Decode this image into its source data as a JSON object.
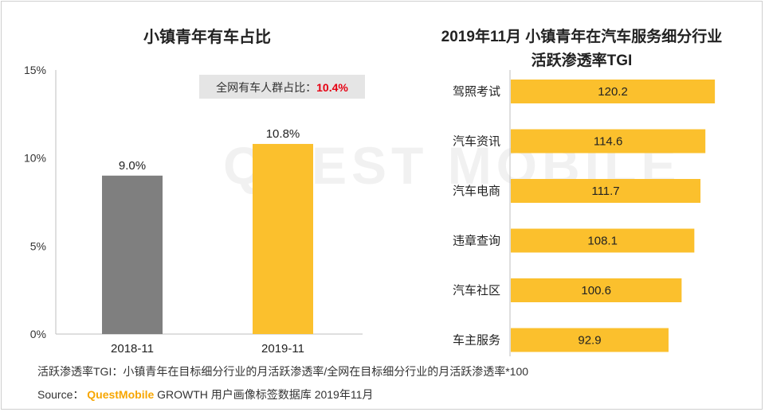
{
  "left_chart": {
    "title": "小镇青年有车占比",
    "callout": {
      "label": "全网有车人群占比：",
      "value": "10.4%",
      "value_color": "#e60012"
    }
  },
  "right_chart": {
    "title_line1": "2019年11月 小镇青年在汽车服务细分行业",
    "title_line2": "活跃渗透率TGI"
  },
  "chart_data": [
    {
      "type": "bar",
      "title": "小镇青年有车占比",
      "categories": [
        "2018-11",
        "2019-11"
      ],
      "values": [
        9.0,
        10.8
      ],
      "value_labels": [
        "9.0%",
        "10.8%"
      ],
      "colors": [
        "#7f7f7f",
        "#fbc02d"
      ],
      "ylim": [
        0,
        15
      ],
      "yticks": [
        0,
        5,
        10,
        15
      ],
      "ytick_labels": [
        "0%",
        "5%",
        "10%",
        "15%"
      ],
      "grid": false
    },
    {
      "type": "bar",
      "orientation": "horizontal",
      "categories": [
        "驾照考试",
        "汽车资讯",
        "汽车电商",
        "违章查询",
        "汽车社区",
        "车主服务"
      ],
      "values": [
        120.2,
        114.6,
        111.7,
        108.1,
        100.6,
        92.9
      ],
      "value_labels": [
        "120.2",
        "114.6",
        "111.7",
        "108.1",
        "100.6",
        "92.9"
      ],
      "color": "#fbc02d",
      "xlim": [
        0,
        130
      ],
      "grid": false
    }
  ],
  "footer": {
    "definition": "活跃渗透率TGI：小镇青年在目标细分行业的月活跃渗透率/全网在目标细分行业的月活跃渗透率*100",
    "source_prefix": "Source：",
    "brand": "QuestMobile",
    "source_rest": "GROWTH 用户画像标签数据库 2019年11月"
  },
  "watermark": "QUEST MOBILE"
}
